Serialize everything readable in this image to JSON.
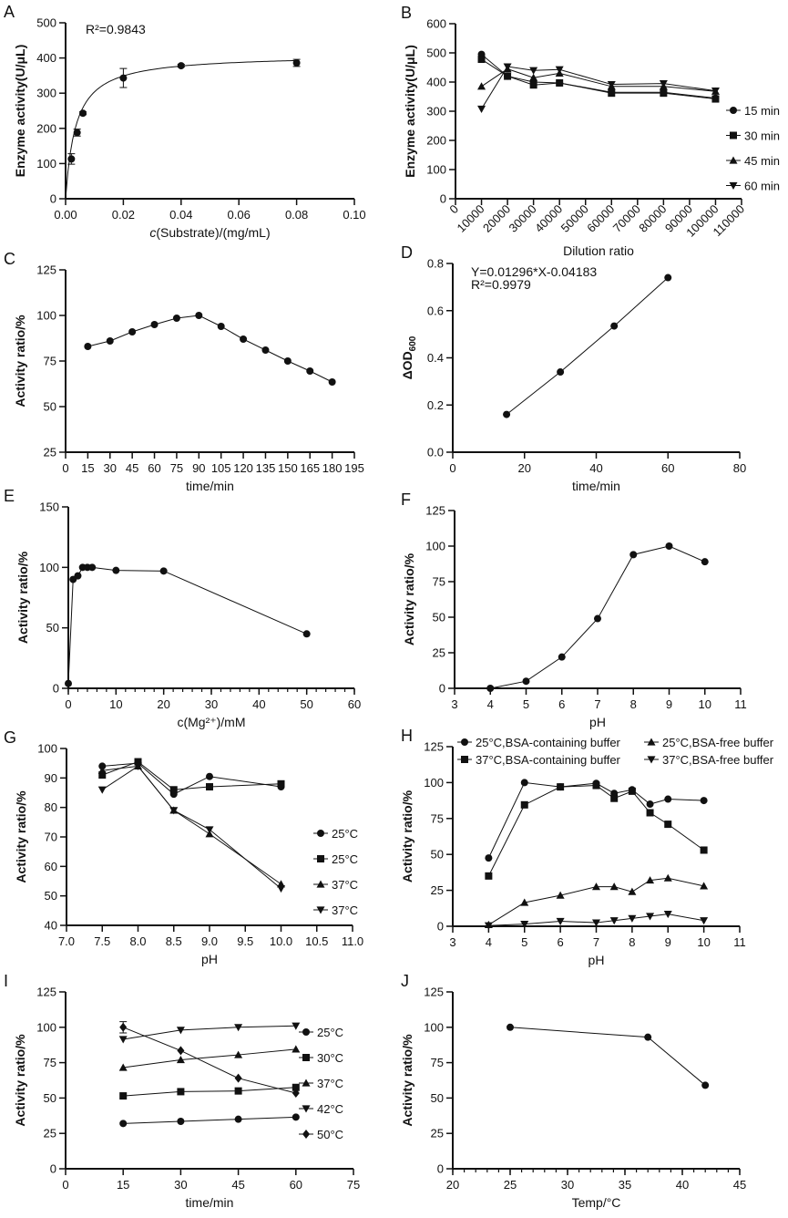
{
  "chart_data": [
    {
      "letter": "A",
      "type": "scatter",
      "xlabel": "c(Substrate)/(mg/mL)",
      "xlabel_italic_prefix": "c",
      "ylabel": "Enzyme activity(U/μL)",
      "xlim": [
        0,
        0.1
      ],
      "ylim": [
        0,
        500
      ],
      "xticks": [
        0,
        0.02,
        0.04,
        0.06,
        0.08,
        0.1
      ],
      "xtick_labels": [
        "0.00",
        "0.02",
        "0.04",
        "0.06",
        "0.08",
        "0.10"
      ],
      "yticks": [
        0,
        100,
        200,
        300,
        400,
        500
      ],
      "annotations": [
        "R²=0.9843"
      ],
      "fit": {
        "type": "michaelis-menten",
        "Vmax": 410,
        "Km": 0.0035
      },
      "series": [
        {
          "name": "activity",
          "marker": "circle",
          "x": [
            0.002,
            0.004,
            0.006,
            0.02,
            0.04,
            0.08
          ],
          "y": [
            113,
            188,
            243,
            343,
            378,
            386
          ],
          "err": [
            15,
            10,
            4,
            27,
            4,
            10
          ],
          "line": false
        }
      ]
    },
    {
      "letter": "B",
      "type": "line",
      "xlabel": "Dilution ratio",
      "ylabel": "Enzyme activity(U/μL)",
      "xlim": [
        0,
        110000
      ],
      "ylim": [
        0,
        600
      ],
      "xticks": [
        0,
        10000,
        20000,
        30000,
        40000,
        50000,
        60000,
        70000,
        80000,
        90000,
        100000,
        110000
      ],
      "xtick_rotate": true,
      "yticks": [
        0,
        100,
        200,
        300,
        400,
        500,
        600
      ],
      "legend": "right",
      "series": [
        {
          "name": "15 min",
          "marker": "circle",
          "x": [
            10000,
            20000,
            30000,
            40000,
            60000,
            80000,
            100000
          ],
          "y": [
            495,
            420,
            400,
            397,
            365,
            365,
            345
          ]
        },
        {
          "name": "30 min",
          "marker": "square",
          "x": [
            10000,
            20000,
            30000,
            40000,
            60000,
            80000,
            100000
          ],
          "y": [
            478,
            420,
            390,
            397,
            362,
            362,
            342
          ]
        },
        {
          "name": "45 min",
          "marker": "triangle",
          "x": [
            10000,
            20000,
            30000,
            40000,
            60000,
            80000,
            100000
          ],
          "y": [
            385,
            445,
            415,
            430,
            385,
            385,
            368
          ]
        },
        {
          "name": "60 min",
          "marker": "down",
          "x": [
            10000,
            20000,
            30000,
            40000,
            60000,
            80000,
            100000
          ],
          "y": [
            308,
            453,
            440,
            443,
            392,
            395,
            370
          ]
        }
      ]
    },
    {
      "letter": "C",
      "type": "line",
      "xlabel": "time/min",
      "ylabel": "Activity ratio/%",
      "xlim": [
        0,
        195
      ],
      "ylim": [
        25,
        125
      ],
      "xticks": [
        0,
        15,
        30,
        45,
        60,
        75,
        90,
        105,
        120,
        135,
        150,
        165,
        180,
        195
      ],
      "yticks": [
        25,
        50,
        75,
        100,
        125
      ],
      "series": [
        {
          "name": "activity",
          "marker": "circle",
          "x": [
            15,
            30,
            45,
            60,
            75,
            90,
            105,
            120,
            135,
            150,
            165,
            180
          ],
          "y": [
            83,
            86,
            91,
            95,
            98.5,
            100,
            94,
            87,
            81,
            75,
            69.5,
            63.5
          ]
        }
      ]
    },
    {
      "letter": "D",
      "type": "scatter",
      "xlabel": "time/min",
      "ylabel": "ΔOD",
      "ylabel_sub": "600",
      "xlim": [
        0,
        80
      ],
      "ylim": [
        0,
        0.8
      ],
      "xticks": [
        0,
        20,
        40,
        60,
        80
      ],
      "yticks": [
        0,
        0.2,
        0.4,
        0.6,
        0.8
      ],
      "ytick_labels": [
        "0.0",
        "0.2",
        "0.4",
        "0.6",
        "0.8"
      ],
      "annotations": [
        "Y=0.01296*X-0.04183",
        "R²=0.9979"
      ],
      "series": [
        {
          "name": "OD",
          "marker": "circle",
          "x": [
            15,
            30,
            45,
            60
          ],
          "y": [
            0.16,
            0.34,
            0.535,
            0.74
          ]
        }
      ]
    },
    {
      "letter": "E",
      "type": "line",
      "xlabel": "c(Mg²⁺)/mM",
      "ylabel": "Activity ratio/%",
      "xlim": [
        0,
        60
      ],
      "ylim": [
        0,
        150
      ],
      "xticks": [
        0,
        10,
        20,
        30,
        40,
        50,
        60
      ],
      "minor_x": 2,
      "yticks": [
        0,
        50,
        100,
        150
      ],
      "series": [
        {
          "name": "activity",
          "marker": "circle",
          "x": [
            0,
            1,
            2,
            3,
            4,
            5,
            10,
            20,
            50
          ],
          "y": [
            4,
            90,
            93,
            100,
            100,
            100,
            97.5,
            97,
            45
          ]
        }
      ]
    },
    {
      "letter": "F",
      "type": "line",
      "xlabel": "pH",
      "ylabel": "Activity ratio/%",
      "xlim": [
        3,
        11
      ],
      "ylim": [
        0,
        125
      ],
      "xticks": [
        3,
        4,
        5,
        6,
        7,
        8,
        9,
        10,
        11
      ],
      "yticks": [
        0,
        25,
        50,
        75,
        100,
        125
      ],
      "series": [
        {
          "name": "activity",
          "marker": "circle",
          "x": [
            4,
            5,
            6,
            7,
            8,
            9,
            10
          ],
          "y": [
            0,
            5,
            22,
            49,
            94,
            100,
            89
          ]
        }
      ]
    },
    {
      "letter": "G",
      "type": "line",
      "xlabel": "pH",
      "ylabel": "Activity ratio/%",
      "xlim": [
        7,
        11
      ],
      "ylim": [
        40,
        100
      ],
      "xticks": [
        7,
        7.5,
        8,
        8.5,
        9,
        9.5,
        10,
        10.5,
        11
      ],
      "xtick_labels": [
        "7.0",
        "7.5",
        "8.0",
        "8.5",
        "9.0",
        "9.5",
        "10.0",
        "10.5",
        "11.0"
      ],
      "yticks": [
        40,
        50,
        60,
        70,
        80,
        90,
        100
      ],
      "legend": "inside-right",
      "series": [
        {
          "name": "25°C",
          "marker": "circle",
          "x": [
            7.5,
            8,
            8.5,
            9,
            10
          ],
          "y": [
            94,
            95,
            84.5,
            90.5,
            87
          ]
        },
        {
          "name": "25°C",
          "marker": "square",
          "x": [
            7.5,
            8,
            8.5,
            9,
            10
          ],
          "y": [
            91,
            95.5,
            86,
            87,
            88
          ]
        },
        {
          "name": "37°C",
          "marker": "triangle",
          "x": [
            7.5,
            8,
            8.5,
            9,
            10
          ],
          "y": [
            92.5,
            94,
            79,
            71,
            54
          ]
        },
        {
          "name": "37°C",
          "marker": "down",
          "x": [
            7.5,
            8,
            8.5,
            9,
            10
          ],
          "y": [
            86,
            94,
            79,
            72.5,
            52.5
          ]
        }
      ]
    },
    {
      "letter": "H",
      "type": "line",
      "xlabel": "pH",
      "ylabel": "Activity ratio/%",
      "xlim": [
        3,
        11
      ],
      "ylim": [
        0,
        125
      ],
      "xticks": [
        3,
        4,
        5,
        6,
        7,
        8,
        9,
        10,
        11
      ],
      "yticks": [
        0,
        25,
        50,
        75,
        100,
        125
      ],
      "legend": "top",
      "series": [
        {
          "name": "25°C,BSA-containing buffer",
          "marker": "circle",
          "x": [
            4,
            5,
            6,
            7,
            7.5,
            8,
            8.5,
            9,
            10
          ],
          "y": [
            47.5,
            100,
            97,
            99.5,
            92.5,
            95,
            85,
            88.5,
            87.5
          ]
        },
        {
          "name": "37°C,BSA-containing buffer",
          "marker": "square",
          "x": [
            4,
            5,
            6,
            7,
            7.5,
            8,
            8.5,
            9,
            10
          ],
          "y": [
            35,
            84.5,
            97,
            98,
            89,
            94,
            79,
            71,
            53
          ]
        },
        {
          "name": "25°C,BSA-free buffer",
          "marker": "triangle",
          "x": [
            4,
            5,
            6,
            7,
            7.5,
            8,
            8.5,
            9,
            10
          ],
          "y": [
            1,
            16.5,
            21.5,
            27.5,
            27.5,
            24,
            32,
            33.5,
            28
          ]
        },
        {
          "name": "37°C,BSA-free buffer",
          "marker": "down",
          "x": [
            4,
            5,
            6,
            7,
            7.5,
            8,
            8.5,
            9,
            10
          ],
          "y": [
            0.5,
            1.5,
            3.5,
            2.5,
            4,
            5.5,
            7,
            8.5,
            4
          ]
        }
      ]
    },
    {
      "letter": "I",
      "type": "line",
      "xlabel": "time/min",
      "ylabel": "Activity ratio/%",
      "xlim": [
        0,
        75
      ],
      "ylim": [
        0,
        125
      ],
      "xticks": [
        0,
        15,
        30,
        45,
        60,
        75
      ],
      "yticks": [
        0,
        25,
        50,
        75,
        100,
        125
      ],
      "legend": "right",
      "series": [
        {
          "name": "25°C",
          "marker": "circle",
          "x": [
            15,
            30,
            45,
            60
          ],
          "y": [
            32,
            33.5,
            35,
            36.5
          ]
        },
        {
          "name": "30°C",
          "marker": "square",
          "x": [
            15,
            30,
            45,
            60
          ],
          "y": [
            51.5,
            54.5,
            55,
            57.5
          ]
        },
        {
          "name": "37°C",
          "marker": "triangle",
          "x": [
            15,
            30,
            45,
            60
          ],
          "y": [
            71.5,
            77,
            80.5,
            84.5
          ]
        },
        {
          "name": "42°C",
          "marker": "down",
          "x": [
            15,
            30,
            45,
            60
          ],
          "y": [
            91.5,
            98,
            100,
            101
          ]
        },
        {
          "name": "50°C",
          "marker": "diamond",
          "x": [
            15,
            30,
            45,
            60
          ],
          "y": [
            100,
            83.5,
            64,
            53.5
          ],
          "err": [
            4,
            0,
            0,
            0
          ]
        }
      ]
    },
    {
      "letter": "J",
      "type": "line",
      "xlabel": "Temp/°C",
      "ylabel": "Activity ratio/%",
      "xlim": [
        20,
        45
      ],
      "ylim": [
        0,
        125
      ],
      "xticks": [
        20,
        25,
        30,
        35,
        40,
        45
      ],
      "minor_x": 1,
      "yticks": [
        0,
        25,
        50,
        75,
        100,
        125
      ],
      "series": [
        {
          "name": "activity",
          "marker": "circle",
          "x": [
            25,
            37,
            42
          ],
          "y": [
            100,
            93,
            59
          ]
        }
      ]
    }
  ]
}
